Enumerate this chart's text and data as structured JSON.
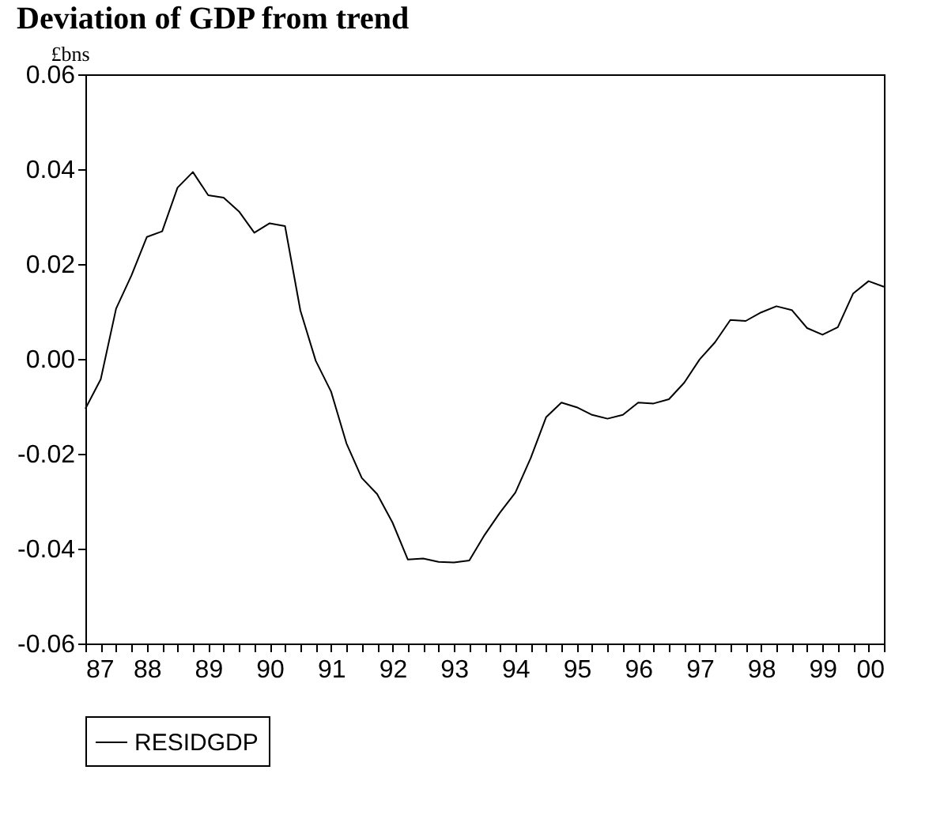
{
  "chart_data": {
    "type": "line",
    "title": "Deviation of GDP from trend",
    "ylabel": "£bns",
    "x": [
      1987.0,
      1987.25,
      1987.5,
      1987.75,
      1988.0,
      1988.25,
      1988.5,
      1988.75,
      1989.0,
      1989.25,
      1989.5,
      1989.75,
      1990.0,
      1990.25,
      1990.5,
      1990.75,
      1991.0,
      1991.25,
      1991.5,
      1991.75,
      1992.0,
      1992.25,
      1992.5,
      1992.75,
      1993.0,
      1993.25,
      1993.5,
      1993.75,
      1994.0,
      1994.25,
      1994.5,
      1994.75,
      1995.0,
      1995.25,
      1995.5,
      1995.75,
      1996.0,
      1996.25,
      1996.5,
      1996.75,
      1997.0,
      1997.25,
      1997.5,
      1997.75,
      1998.0,
      1998.25,
      1998.5,
      1998.75,
      1999.0,
      1999.25,
      1999.5,
      1999.75,
      2000.0
    ],
    "series": [
      {
        "name": "RESIDGDP",
        "color": "#000000",
        "values": [
          -0.0105,
          -0.0043,
          0.0106,
          0.0176,
          0.0257,
          0.0269,
          0.0361,
          0.0394,
          0.0345,
          0.034,
          0.0311,
          0.0266,
          0.0286,
          0.028,
          0.0102,
          -0.0004,
          -0.0069,
          -0.0178,
          -0.0251,
          -0.0285,
          -0.0345,
          -0.0423,
          -0.0421,
          -0.0428,
          -0.0429,
          -0.0425,
          -0.0371,
          -0.0324,
          -0.0282,
          -0.0209,
          -0.0123,
          -0.0092,
          -0.0102,
          -0.0118,
          -0.0126,
          -0.0118,
          -0.0092,
          -0.0094,
          -0.0085,
          -0.005,
          -0.0001,
          0.0035,
          0.0082,
          0.008,
          0.0098,
          0.0111,
          0.0103,
          0.0065,
          0.0051,
          0.0067,
          0.0138,
          0.0164,
          0.0152
        ]
      }
    ],
    "xlim": [
      1987,
      2000
    ],
    "ylim": [
      -0.06,
      0.06
    ],
    "xticks": [
      {
        "value": 1987,
        "label": "87"
      },
      {
        "value": 1987.25,
        "label": null
      },
      {
        "value": 1987.5,
        "label": null
      },
      {
        "value": 1987.75,
        "label": null
      },
      {
        "value": 1988,
        "label": "88"
      },
      {
        "value": 1988.25,
        "label": null
      },
      {
        "value": 1988.5,
        "label": null
      },
      {
        "value": 1988.75,
        "label": null
      },
      {
        "value": 1989,
        "label": "89"
      },
      {
        "value": 1989.25,
        "label": null
      },
      {
        "value": 1989.5,
        "label": null
      },
      {
        "value": 1989.75,
        "label": null
      },
      {
        "value": 1990,
        "label": "90"
      },
      {
        "value": 1990.25,
        "label": null
      },
      {
        "value": 1990.5,
        "label": null
      },
      {
        "value": 1990.75,
        "label": null
      },
      {
        "value": 1991,
        "label": "91"
      },
      {
        "value": 1991.25,
        "label": null
      },
      {
        "value": 1991.5,
        "label": null
      },
      {
        "value": 1991.75,
        "label": null
      },
      {
        "value": 1992,
        "label": "92"
      },
      {
        "value": 1992.25,
        "label": null
      },
      {
        "value": 1992.5,
        "label": null
      },
      {
        "value": 1992.75,
        "label": null
      },
      {
        "value": 1993,
        "label": "93"
      },
      {
        "value": 1993.25,
        "label": null
      },
      {
        "value": 1993.5,
        "label": null
      },
      {
        "value": 1993.75,
        "label": null
      },
      {
        "value": 1994,
        "label": "94"
      },
      {
        "value": 1994.25,
        "label": null
      },
      {
        "value": 1994.5,
        "label": null
      },
      {
        "value": 1994.75,
        "label": null
      },
      {
        "value": 1995,
        "label": "95"
      },
      {
        "value": 1995.25,
        "label": null
      },
      {
        "value": 1995.5,
        "label": null
      },
      {
        "value": 1995.75,
        "label": null
      },
      {
        "value": 1996,
        "label": "96"
      },
      {
        "value": 1996.25,
        "label": null
      },
      {
        "value": 1996.5,
        "label": null
      },
      {
        "value": 1996.75,
        "label": null
      },
      {
        "value": 1997,
        "label": "97"
      },
      {
        "value": 1997.25,
        "label": null
      },
      {
        "value": 1997.5,
        "label": null
      },
      {
        "value": 1997.75,
        "label": null
      },
      {
        "value": 1998,
        "label": "98"
      },
      {
        "value": 1998.25,
        "label": null
      },
      {
        "value": 1998.5,
        "label": null
      },
      {
        "value": 1998.75,
        "label": null
      },
      {
        "value": 1999,
        "label": "99"
      },
      {
        "value": 1999.25,
        "label": null
      },
      {
        "value": 1999.5,
        "label": null
      },
      {
        "value": 1999.75,
        "label": null
      },
      {
        "value": 2000,
        "label": "00"
      }
    ],
    "yticks": [
      {
        "value": -0.06,
        "label": "-0.06"
      },
      {
        "value": -0.04,
        "label": "-0.04"
      },
      {
        "value": -0.02,
        "label": "-0.02"
      },
      {
        "value": 0,
        "label": "0.00"
      },
      {
        "value": 0.02,
        "label": "0.02"
      },
      {
        "value": 0.04,
        "label": "0.04"
      },
      {
        "value": 0.06,
        "label": "0.06"
      }
    ],
    "grid": false,
    "legend": "bottom",
    "line_style": "solid",
    "marker": "none"
  }
}
